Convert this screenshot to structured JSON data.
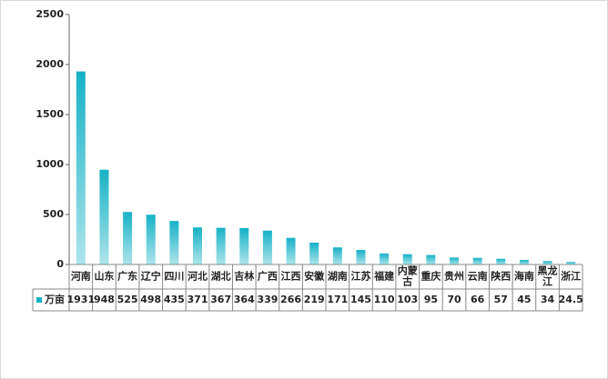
{
  "chart_data": {
    "type": "bar",
    "categories": [
      "河南",
      "山东",
      "广东",
      "辽宁",
      "四川",
      "河北",
      "湖北",
      "吉林",
      "广西",
      "江西",
      "安徽",
      "湖南",
      "江苏",
      "福建",
      "内蒙古",
      "重庆",
      "贵州",
      "云南",
      "陕西",
      "海南",
      "黑龙江",
      "浙江"
    ],
    "series": [
      {
        "name": "万亩",
        "color": "#17b2c6",
        "values": [
          1931,
          948,
          525,
          498,
          435,
          371,
          367,
          364,
          339,
          266,
          219,
          171,
          145,
          110,
          103,
          95,
          70,
          66,
          57,
          45,
          34,
          24.5
        ]
      }
    ],
    "ylim": [
      0,
      2500
    ],
    "yticks": [
      0,
      500,
      1000,
      1500,
      2000,
      2500
    ],
    "grid": false
  }
}
